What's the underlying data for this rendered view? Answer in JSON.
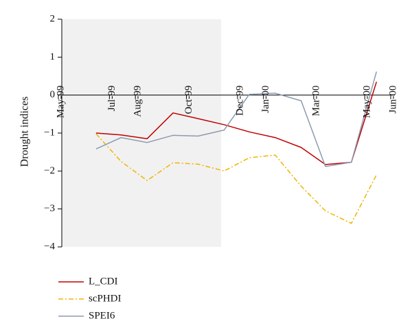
{
  "chart_data": {
    "type": "line",
    "title": "",
    "xlabel": "",
    "ylabel": "Drought indices",
    "ylim": [
      -4,
      2
    ],
    "yticks": [
      "−4",
      "−3",
      "−2",
      "−1",
      "0",
      "1",
      "2"
    ],
    "xticks": [
      "May-99",
      "Jul-99",
      "Aug-99",
      "Oct-99",
      "Dec-99",
      "Jan-00",
      "Mar-00",
      "May-00",
      "Jun-00"
    ],
    "xlim": [
      "1999-05-01",
      "2000-06-01"
    ],
    "grid": false,
    "legend_position": "bottom-left",
    "series": [
      {
        "name": "L_CDI",
        "color": "#c00000",
        "dash": "solid",
        "points": [
          [
            "1999-06-15",
            -1.0
          ],
          [
            "1999-07-15",
            -1.05
          ],
          [
            "1999-08-15",
            -1.15
          ],
          [
            "1999-09-15",
            -0.47
          ],
          [
            "1999-10-15",
            -0.62
          ],
          [
            "1999-11-15",
            -0.78
          ],
          [
            "1999-12-15",
            -0.97
          ],
          [
            "2000-01-15",
            -1.12
          ],
          [
            "2000-02-15",
            -1.38
          ],
          [
            "2000-03-15",
            -1.83
          ],
          [
            "2000-04-15",
            -1.77
          ],
          [
            "2000-05-15",
            0.35
          ]
        ]
      },
      {
        "name": "scPHDI",
        "color": "#f0b400",
        "dash": "dashdot",
        "points": [
          [
            "1999-06-15",
            -1.02
          ],
          [
            "1999-07-15",
            -1.75
          ],
          [
            "1999-08-15",
            -2.25
          ],
          [
            "1999-09-15",
            -1.78
          ],
          [
            "1999-10-15",
            -1.82
          ],
          [
            "1999-11-15",
            -2.0
          ],
          [
            "1999-12-15",
            -1.65
          ],
          [
            "2000-01-15",
            -1.58
          ],
          [
            "2000-02-15",
            -2.4
          ],
          [
            "2000-03-15",
            -3.05
          ],
          [
            "2000-04-15",
            -3.38
          ],
          [
            "2000-05-15",
            -2.1
          ]
        ]
      },
      {
        "name": "SPEI6",
        "color": "#8a9bb0",
        "dash": "solid",
        "points": [
          [
            "1999-06-15",
            -1.42
          ],
          [
            "1999-07-15",
            -1.12
          ],
          [
            "1999-08-15",
            -1.25
          ],
          [
            "1999-09-15",
            -1.06
          ],
          [
            "1999-10-15",
            -1.08
          ],
          [
            "1999-11-15",
            -0.92
          ],
          [
            "1999-12-15",
            0.02
          ],
          [
            "2000-01-15",
            0.05
          ],
          [
            "2000-02-15",
            -0.15
          ],
          [
            "2000-03-15",
            -1.88
          ],
          [
            "2000-04-15",
            -1.77
          ],
          [
            "2000-05-15",
            0.62
          ]
        ]
      }
    ]
  }
}
